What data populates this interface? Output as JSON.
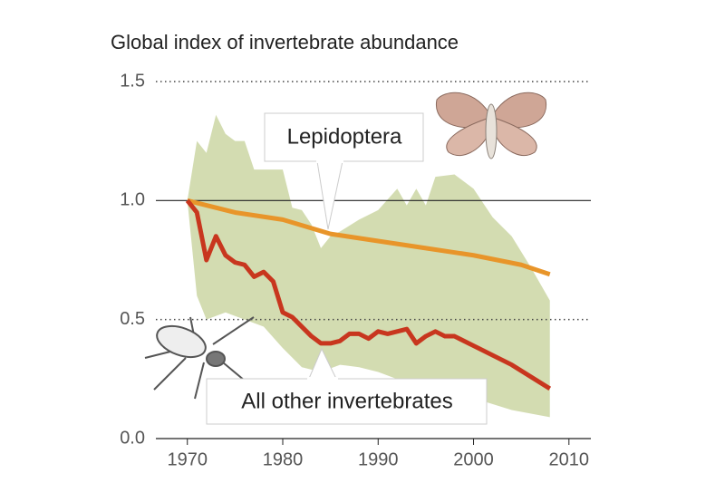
{
  "chart_data": {
    "type": "line",
    "title": "Global index of invertebrate abundance",
    "xlim": [
      1966.7,
      2012.3
    ],
    "xticks": [
      1970,
      1980,
      1990,
      2000,
      2010
    ],
    "ylim": [
      0,
      1.5
    ],
    "yticks": [
      {
        "value": 0,
        "label": "0.0"
      },
      {
        "value": 0.5,
        "label": "0.5"
      },
      {
        "value": 1,
        "label": "1.0"
      },
      {
        "value": 1.5,
        "label": "1.5"
      }
    ],
    "series": [
      {
        "name": "Lepidoptera",
        "color": "#e8952a",
        "x": [
          1970,
          1975,
          1980,
          1985,
          1990,
          1995,
          2000,
          2005,
          2008
        ],
        "values": [
          1.0,
          0.95,
          0.92,
          0.86,
          0.83,
          0.8,
          0.77,
          0.73,
          0.69
        ]
      },
      {
        "name": "All other invertebrates",
        "color": "#c8361e",
        "x": [
          1970,
          1971,
          1972,
          1973,
          1974,
          1975,
          1976,
          1977,
          1978,
          1979,
          1980,
          1981,
          1982,
          1983,
          1984,
          1985,
          1986,
          1987,
          1988,
          1989,
          1990,
          1991,
          1992,
          1993,
          1994,
          1995,
          1996,
          1997,
          1998,
          2000,
          2002,
          2004,
          2006,
          2008
        ],
        "values": [
          1.0,
          0.95,
          0.75,
          0.85,
          0.77,
          0.74,
          0.73,
          0.68,
          0.7,
          0.66,
          0.53,
          0.51,
          0.47,
          0.43,
          0.4,
          0.4,
          0.41,
          0.44,
          0.44,
          0.42,
          0.45,
          0.44,
          0.45,
          0.46,
          0.4,
          0.43,
          0.45,
          0.43,
          0.43,
          0.39,
          0.35,
          0.31,
          0.26,
          0.21
        ]
      }
    ],
    "band": {
      "color": "#d3dcb1",
      "upper": {
        "x": [
          1970,
          1971,
          1972,
          1973,
          1974,
          1975,
          1976,
          1977,
          1980,
          1981,
          1982,
          1983,
          1984,
          1985,
          1986,
          1988,
          1990,
          1992,
          1993,
          1994,
          1995,
          1996,
          1998,
          2000,
          2002,
          2004,
          2006,
          2008
        ],
        "values": [
          1.0,
          1.25,
          1.2,
          1.36,
          1.28,
          1.25,
          1.25,
          1.13,
          1.13,
          0.97,
          0.96,
          0.9,
          0.8,
          0.85,
          0.87,
          0.92,
          0.96,
          1.05,
          0.98,
          1.05,
          0.98,
          1.1,
          1.11,
          1.05,
          0.93,
          0.85,
          0.72,
          0.58
        ]
      },
      "lower": {
        "x": [
          1970,
          1971,
          1972,
          1974,
          1976,
          1978,
          1980,
          1982,
          1984,
          1986,
          1988,
          1990,
          1992,
          1994,
          1996,
          1998,
          2000,
          2004,
          2008
        ],
        "values": [
          1.0,
          0.6,
          0.5,
          0.53,
          0.5,
          0.47,
          0.38,
          0.3,
          0.28,
          0.31,
          0.3,
          0.28,
          0.25,
          0.22,
          0.22,
          0.2,
          0.17,
          0.12,
          0.09
        ]
      }
    }
  }
}
